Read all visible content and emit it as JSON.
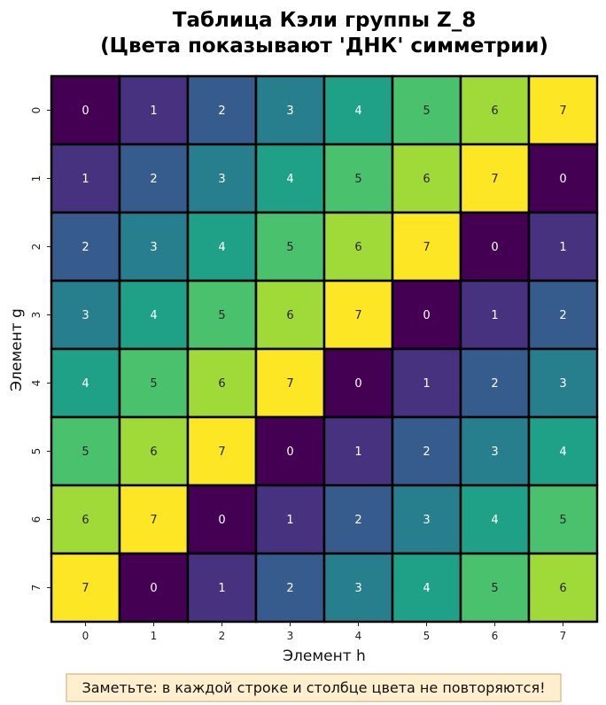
{
  "chart_data": {
    "type": "heatmap",
    "title_lines": [
      "Таблица Кэли группы Z_8",
      "(Цвета показывают 'ДНК' симметрии)"
    ],
    "xlabel": "Элемент h",
    "ylabel": "Элемент g",
    "x_ticks": [
      "0",
      "1",
      "2",
      "3",
      "4",
      "5",
      "6",
      "7"
    ],
    "y_ticks": [
      "0",
      "1",
      "2",
      "3",
      "4",
      "5",
      "6",
      "7"
    ],
    "values": [
      [
        0,
        1,
        2,
        3,
        4,
        5,
        6,
        7
      ],
      [
        1,
        2,
        3,
        4,
        5,
        6,
        7,
        0
      ],
      [
        2,
        3,
        4,
        5,
        6,
        7,
        0,
        1
      ],
      [
        3,
        4,
        5,
        6,
        7,
        0,
        1,
        2
      ],
      [
        4,
        5,
        6,
        7,
        0,
        1,
        2,
        3
      ],
      [
        5,
        6,
        7,
        0,
        1,
        2,
        3,
        4
      ],
      [
        6,
        7,
        0,
        1,
        2,
        3,
        4,
        5
      ],
      [
        7,
        0,
        1,
        2,
        3,
        4,
        5,
        6
      ]
    ],
    "colormap": "viridis",
    "color_range": [
      0,
      7
    ],
    "palette": [
      "#440154",
      "#46327e",
      "#365c8d",
      "#277f8e",
      "#1fa187",
      "#4ac16d",
      "#a0da39",
      "#fde725"
    ],
    "text_color_dark_cells": "#ffffff",
    "text_color_light_cells": "#262626",
    "cell_border_color": "#000000",
    "grid": false,
    "legend": "none"
  },
  "note": {
    "text": "Заметьте: в каждой строке и столбце цвета не повторяются!",
    "background": "#ffefcc",
    "border": "#d9c29a"
  }
}
